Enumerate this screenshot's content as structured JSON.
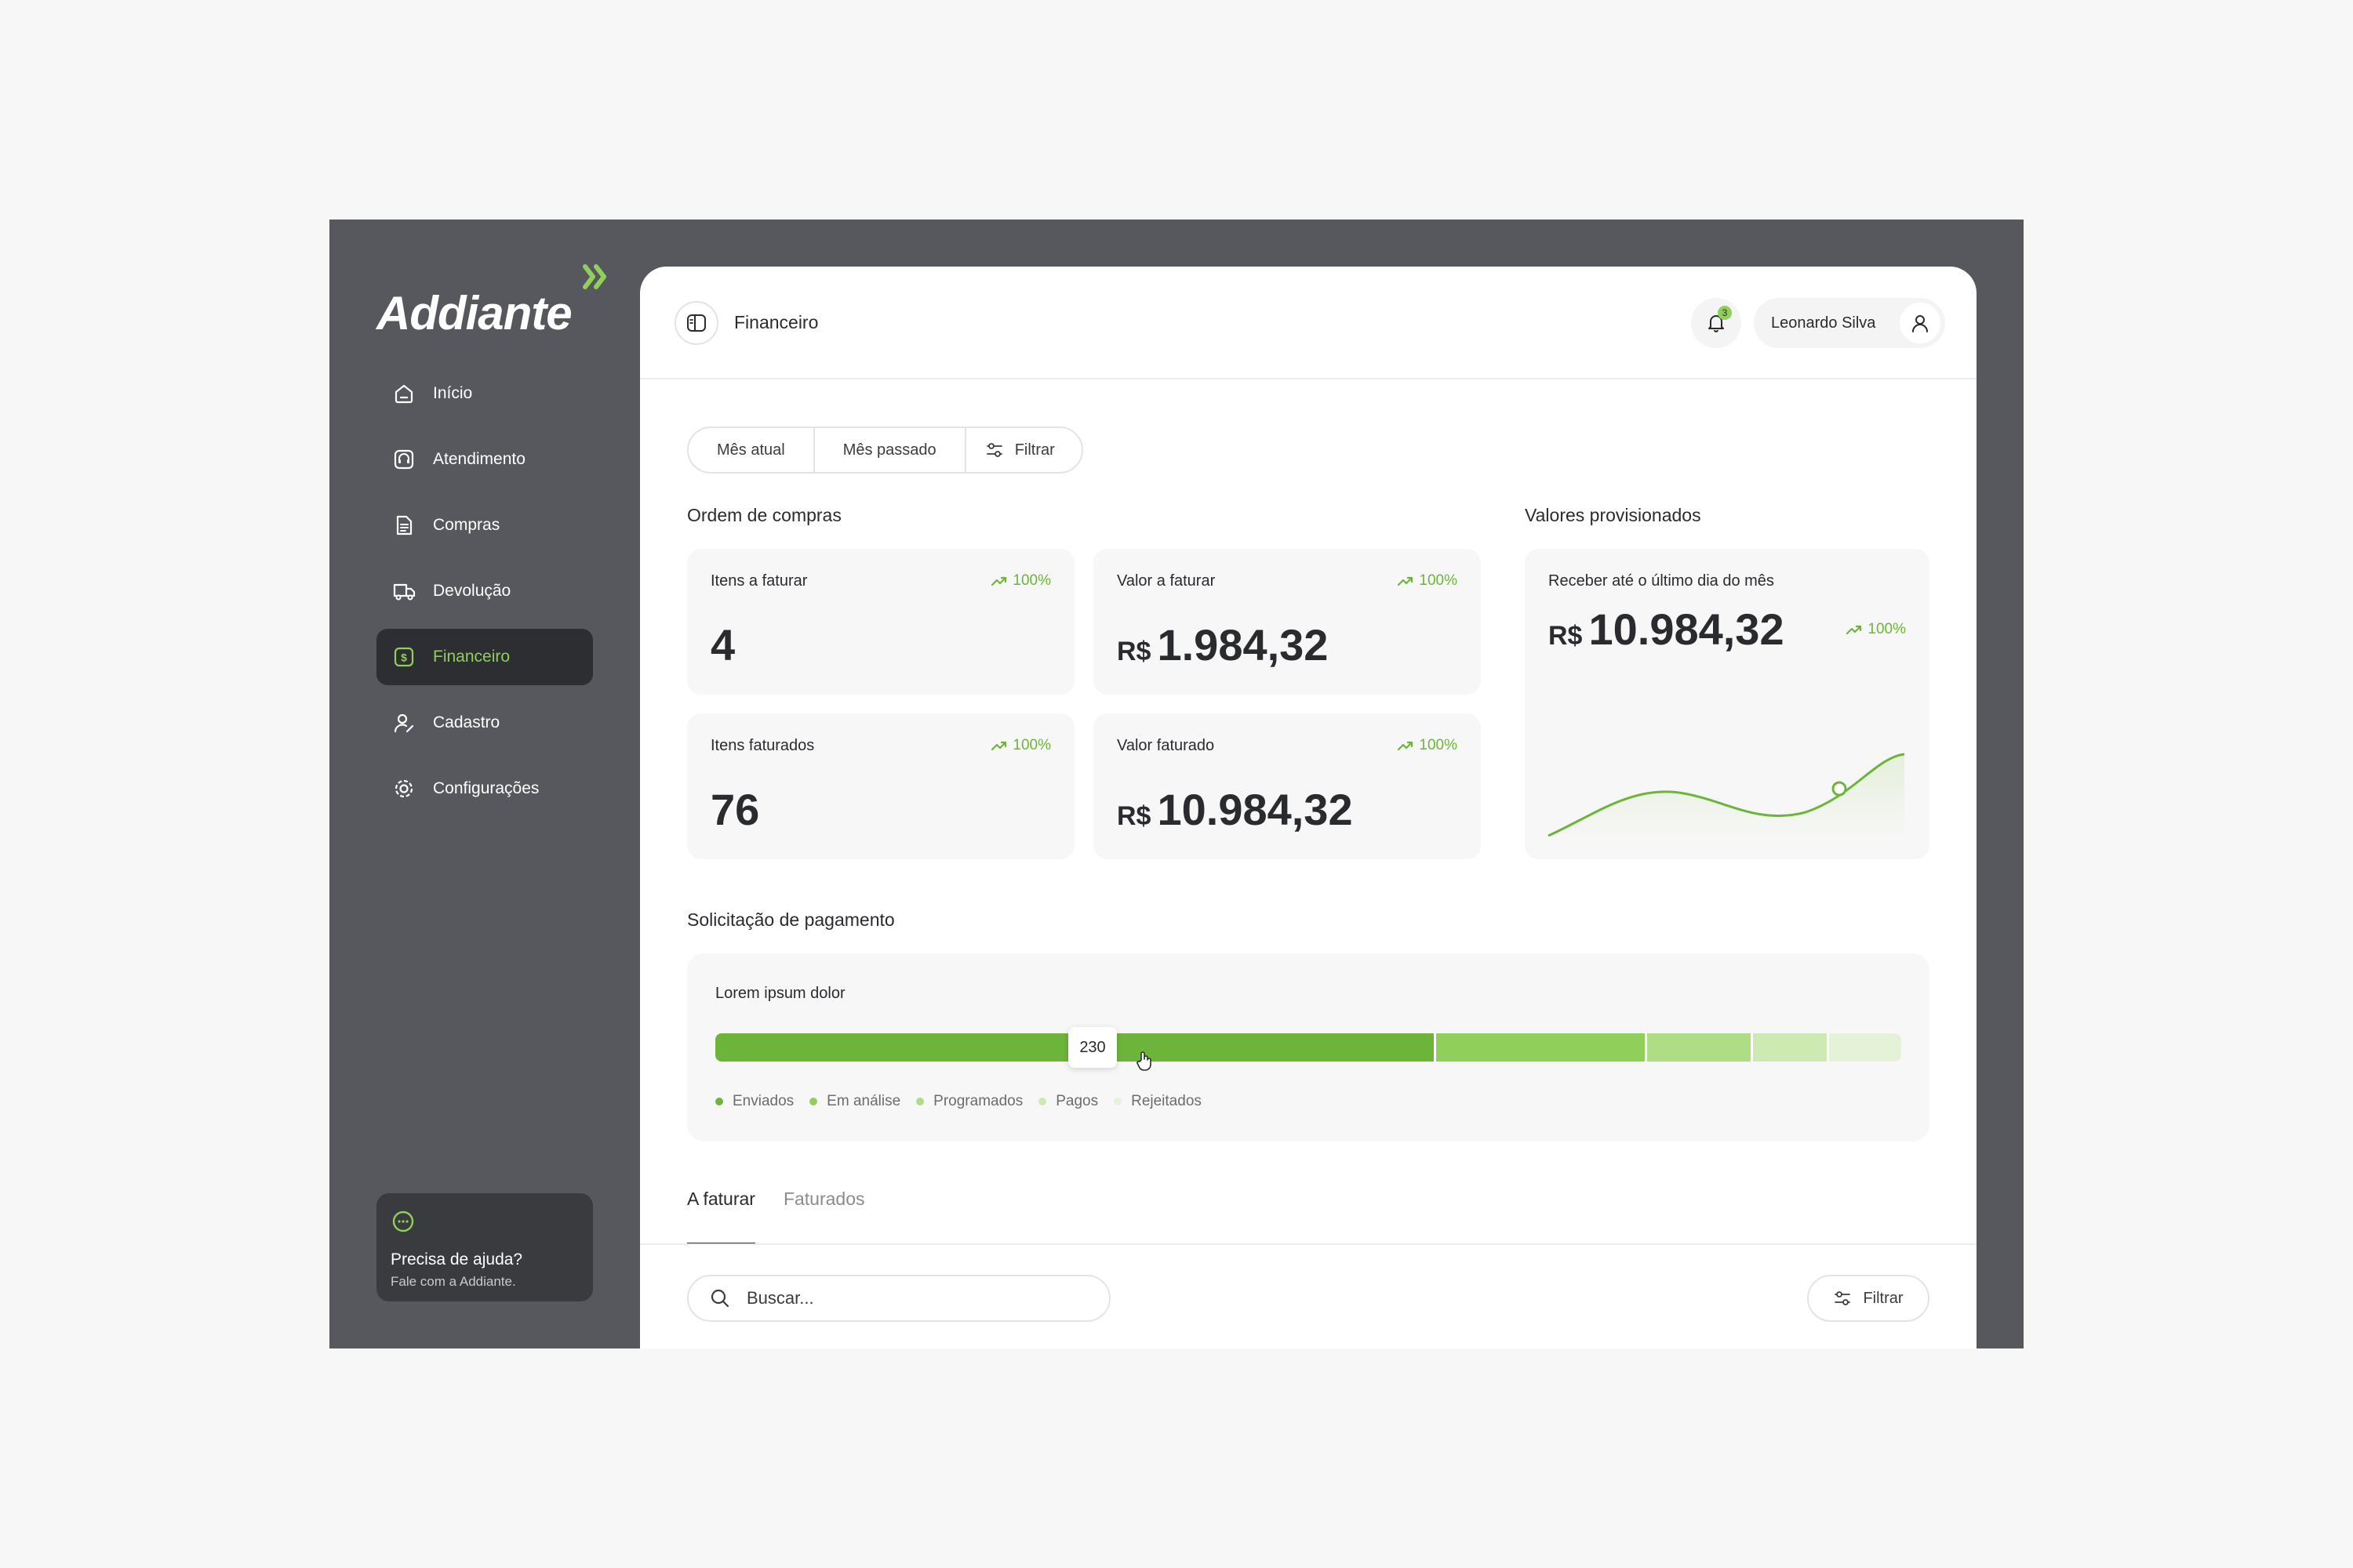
{
  "brand": {
    "name": "Addiante",
    "accent": "#8fcf5a"
  },
  "sidebar": {
    "items": [
      {
        "label": "Início",
        "icon": "home-icon"
      },
      {
        "label": "Atendimento",
        "icon": "headset-icon"
      },
      {
        "label": "Compras",
        "icon": "document-icon"
      },
      {
        "label": "Devolução",
        "icon": "truck-icon"
      },
      {
        "label": "Financeiro",
        "icon": "dollar-icon",
        "active": true
      },
      {
        "label": "Cadastro",
        "icon": "user-edit-icon"
      },
      {
        "label": "Configurações",
        "icon": "gear-icon"
      }
    ],
    "help": {
      "title": "Precisa de ajuda?",
      "subtitle": "Fale com a Addiante."
    }
  },
  "header": {
    "title": "Financeiro",
    "notifications": "3",
    "user_name": "Leonardo Silva"
  },
  "period": {
    "current": "Mês atual",
    "last": "Mês passado",
    "filter": "Filtrar"
  },
  "orders": {
    "title": "Ordem de compras",
    "cards": [
      {
        "label": "Itens a faturar",
        "value": "4",
        "trend": "100%"
      },
      {
        "label": "Valor a faturar",
        "currency": "R$",
        "value": "1.984,32",
        "trend": "100%"
      },
      {
        "label": "Itens faturados",
        "value": "76",
        "trend": "100%"
      },
      {
        "label": "Valor faturado",
        "currency": "R$",
        "value": "10.984,32",
        "trend": "100%"
      }
    ]
  },
  "provisioned": {
    "title": "Valores provisionados",
    "label": "Receber até o último dia do mês",
    "currency": "R$",
    "value": "10.984,32",
    "trend": "100%"
  },
  "payment": {
    "title": "Solicitação de pagamento",
    "label": "Lorem ipsum dolor",
    "tooltip": "230",
    "segments": [
      {
        "name": "Enviados",
        "share": 0.608,
        "color": "#6cb53a"
      },
      {
        "name": "Em análise",
        "share": 0.178,
        "color": "#8fcf5a"
      },
      {
        "name": "Programados",
        "share": 0.089,
        "color": "#aedd86"
      },
      {
        "name": "Pagos",
        "share": 0.064,
        "color": "#cdeab3"
      },
      {
        "name": "Rejeitados",
        "share": 0.061,
        "color": "#e4f3d8"
      }
    ]
  },
  "tabs": {
    "items": [
      "A faturar",
      "Faturados"
    ],
    "active": 0
  },
  "search": {
    "placeholder": "Buscar..."
  },
  "table_filter": "Filtrar"
}
